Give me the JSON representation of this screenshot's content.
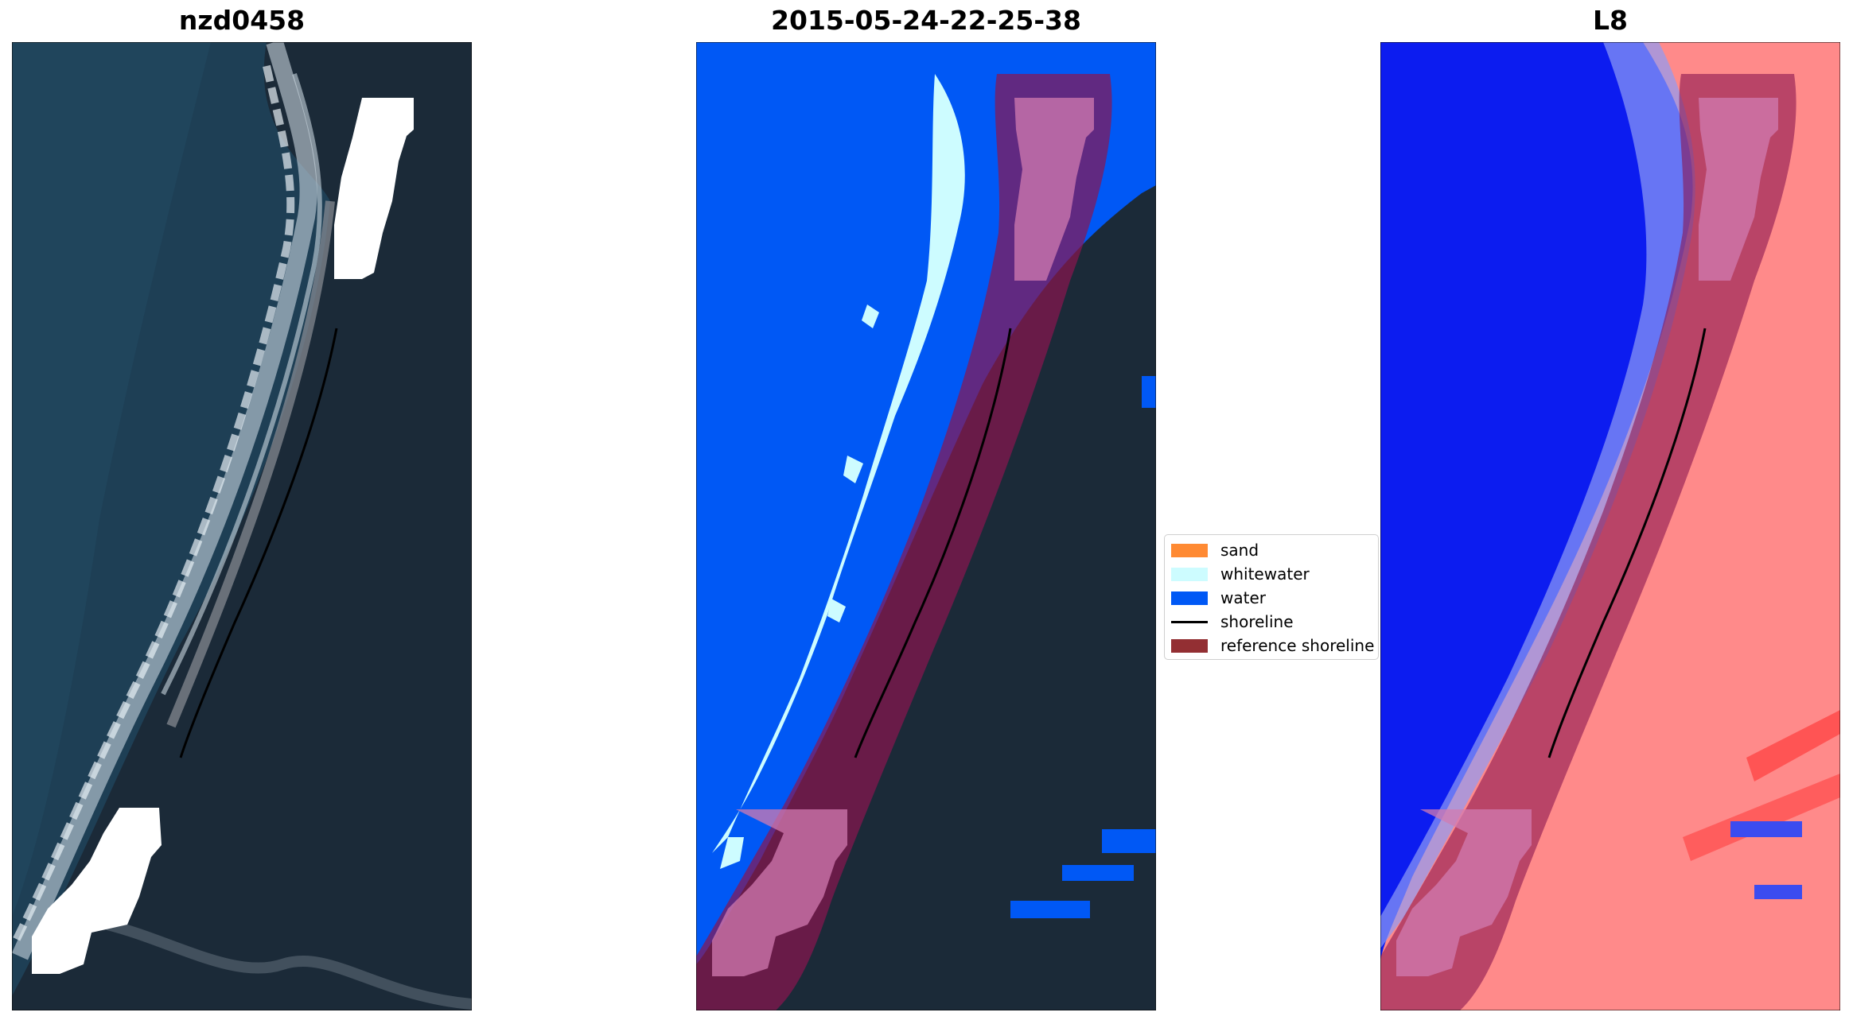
{
  "panels": [
    {
      "title": "nzd0458"
    },
    {
      "title": "2015-05-24-22-25-38"
    },
    {
      "title": "L8"
    }
  ],
  "legend": {
    "items": [
      {
        "label": "sand",
        "color": "#ff8a33",
        "kind": "patch"
      },
      {
        "label": "whitewater",
        "color": "#cdfcff",
        "kind": "patch"
      },
      {
        "label": "water",
        "color": "#0058f5",
        "kind": "patch"
      },
      {
        "label": "shoreline",
        "color": "#000000",
        "kind": "line"
      },
      {
        "label": "reference shoreline",
        "color": "#932f33",
        "kind": "patch"
      }
    ]
  },
  "colors": {
    "sea": "#1e3f55",
    "land": "#1b2a38",
    "water_class": "#0058f5",
    "whitewater_class": "#cdfcff",
    "reference_buffer": "#8a1650",
    "cloud_mask": "#ffffff",
    "index_water": "#0c1cf0",
    "index_land": "#ff8080"
  }
}
